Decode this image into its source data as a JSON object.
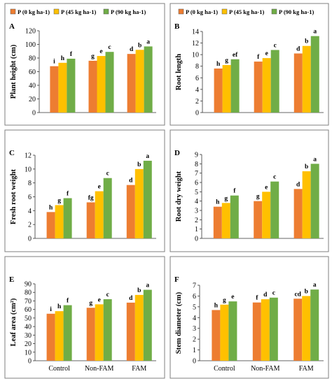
{
  "chart_data": [
    {
      "type": "bar",
      "panel": "A",
      "categories": [
        "",
        "",
        ""
      ],
      "series": [
        {
          "name": "P (0 kg ha-1)",
          "values": [
            68,
            73,
            79
          ]
        },
        {
          "name": "P (45 kg ha-1)",
          "values": [
            76,
            83,
            89
          ]
        },
        {
          "name": "P (90 kg ha-1)",
          "values": [
            86,
            92,
            97
          ]
        }
      ],
      "letters": [
        [
          "i",
          "h",
          "f"
        ],
        [
          "g",
          "e",
          "c"
        ],
        [
          "d",
          "b",
          "a"
        ]
      ],
      "ylabel": "Plant height (cm)",
      "ylim": [
        0,
        120
      ],
      "yticks": [
        0,
        20,
        40,
        60,
        80,
        100,
        120
      ],
      "legend": "top"
    },
    {
      "type": "bar",
      "panel": "B",
      "categories": [
        "",
        "",
        ""
      ],
      "series": [
        {
          "name": "P (0 kg ha-1)",
          "values": [
            7.6,
            8.2,
            9.2
          ]
        },
        {
          "name": "P (45 kg ha-1)",
          "values": [
            8.8,
            9.4,
            10.8
          ]
        },
        {
          "name": "P (90 kg ha-1)",
          "values": [
            10.2,
            11.5,
            13.2
          ]
        }
      ],
      "letters": [
        [
          "h",
          "g",
          "ef"
        ],
        [
          "f",
          "e",
          "c"
        ],
        [
          "d",
          "b",
          "a"
        ]
      ],
      "ylabel": "Root length",
      "ylim": [
        0,
        14
      ],
      "yticks": [
        0,
        2,
        4,
        6,
        8,
        10,
        12,
        14
      ],
      "legend": "top"
    },
    {
      "type": "bar",
      "panel": "C",
      "categories": [
        "",
        "",
        ""
      ],
      "series": [
        {
          "name": "",
          "values": [
            3.8,
            4.8,
            5.8
          ]
        },
        {
          "name": "",
          "values": [
            5.2,
            6.8,
            8.7
          ]
        },
        {
          "name": "",
          "values": [
            7.7,
            10.0,
            11.2
          ]
        }
      ],
      "letters": [
        [
          "h",
          "g",
          "f"
        ],
        [
          "fg",
          "e",
          "c"
        ],
        [
          "d",
          "b",
          "a"
        ]
      ],
      "ylabel": "Fresh root weight",
      "ylim": [
        0,
        12
      ],
      "yticks": [
        0,
        2,
        4,
        6,
        8,
        10,
        12
      ]
    },
    {
      "type": "bar",
      "panel": "D",
      "categories": [
        "",
        "",
        ""
      ],
      "series": [
        {
          "name": "",
          "values": [
            3.4,
            3.8,
            4.6
          ]
        },
        {
          "name": "",
          "values": [
            4.0,
            5.0,
            6.1
          ]
        },
        {
          "name": "",
          "values": [
            5.3,
            7.2,
            8.0
          ]
        }
      ],
      "letters": [
        [
          "h",
          "g",
          "f"
        ],
        [
          "g",
          "e",
          "c"
        ],
        [
          "d",
          "b",
          "a"
        ]
      ],
      "ylabel": "Root dry weight",
      "ylim": [
        0,
        9
      ],
      "yticks": [
        0,
        1,
        2,
        3,
        4,
        5,
        6,
        7,
        8,
        9
      ]
    },
    {
      "type": "bar",
      "panel": "E",
      "categories": [
        "Control",
        "Non-FAM",
        "FAM"
      ],
      "series": [
        {
          "name": "",
          "values": [
            55,
            58,
            65
          ]
        },
        {
          "name": "",
          "values": [
            62,
            66,
            72
          ]
        },
        {
          "name": "",
          "values": [
            68,
            77,
            83
          ]
        }
      ],
      "letters": [
        [
          "i",
          "h",
          "f"
        ],
        [
          "g",
          "e",
          "c"
        ],
        [
          "d",
          "b",
          "a"
        ]
      ],
      "ylabel": "Leaf area (cm²)",
      "ylim": [
        0,
        90
      ],
      "yticks": [
        0,
        10,
        20,
        30,
        40,
        50,
        60,
        70,
        80,
        90
      ]
    },
    {
      "type": "bar",
      "panel": "F",
      "categories": [
        "Control",
        "Non-FAM",
        "FAM"
      ],
      "series": [
        {
          "name": "",
          "values": [
            4.7,
            5.2,
            5.5
          ]
        },
        {
          "name": "",
          "values": [
            5.4,
            5.7,
            5.85
          ]
        },
        {
          "name": "",
          "values": [
            5.75,
            6.0,
            6.6
          ]
        }
      ],
      "letters": [
        [
          "h",
          "g",
          "e"
        ],
        [
          "f",
          "d",
          "c"
        ],
        [
          "cd",
          "b",
          "a"
        ]
      ],
      "ylabel": "Stem diameter (cm)",
      "ylim": [
        0,
        7
      ],
      "yticks": [
        0,
        1,
        2,
        3,
        4,
        5,
        6,
        7
      ]
    }
  ],
  "colors": {
    "p0": "#ED7D31",
    "p45": "#FFC000",
    "p90": "#70AD47",
    "frame": "#7f7f7f",
    "axis": "#333333",
    "text": "#000000"
  }
}
